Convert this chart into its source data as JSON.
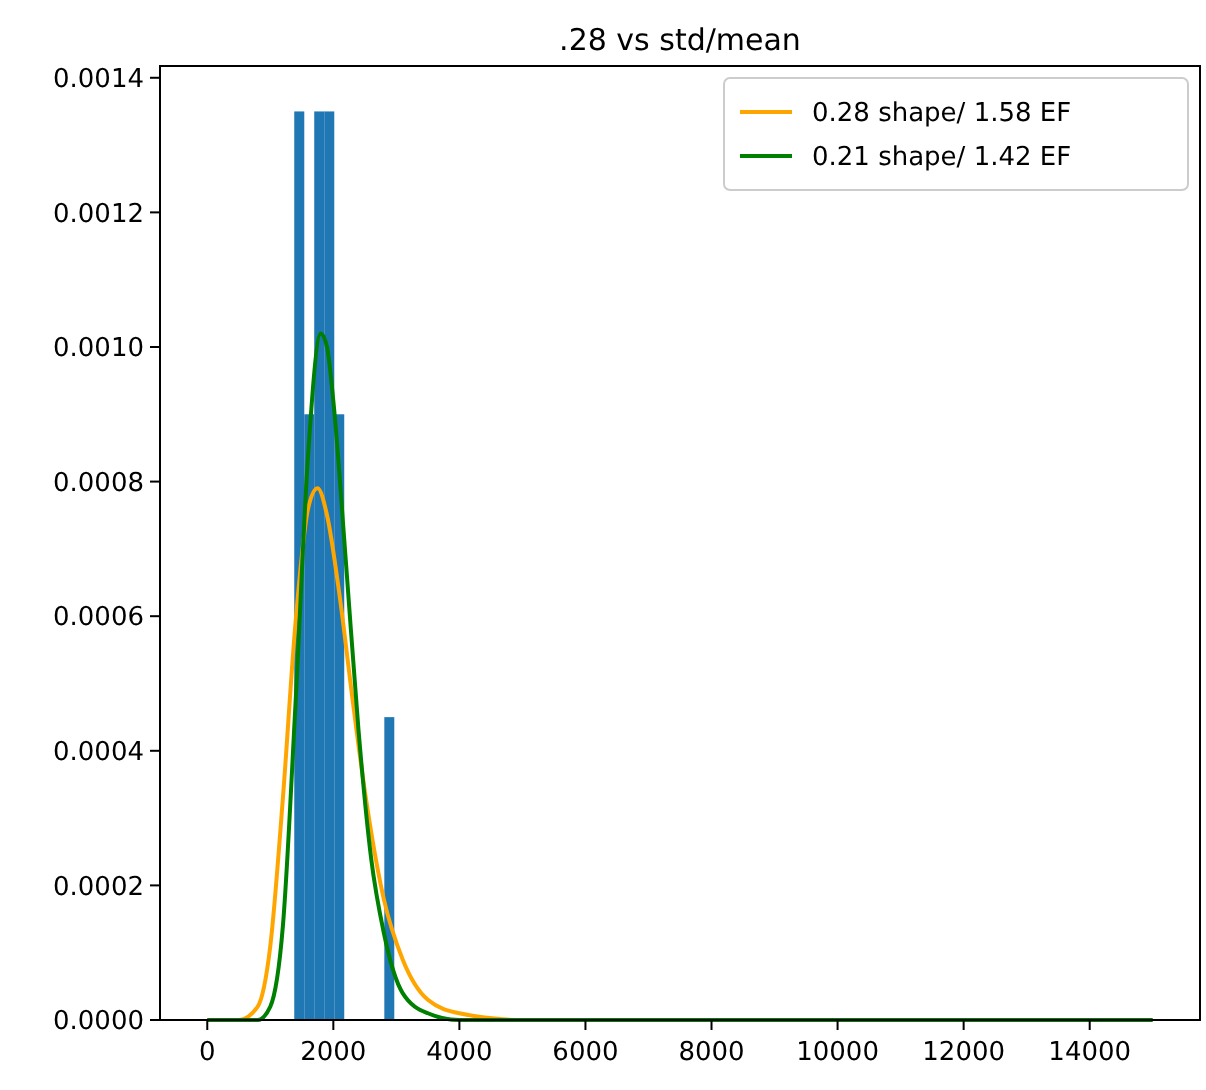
{
  "chart_data": {
    "type": "histogram",
    "title": ".28 vs std/mean",
    "bins": [
      1380,
      1539,
      1697,
      1856,
      2015,
      2173,
      2332,
      2491,
      2650,
      2809,
      2967
    ],
    "values": [
      0.00135,
      0.0009,
      0.00135,
      0.00135,
      0.0009,
      0,
      0,
      0,
      0,
      0.00045
    ],
    "color": "#1f77b4",
    "series": [
      {
        "name": "0.28 shape/ 1.58 EF",
        "type": "line",
        "color": "#ffa500",
        "x": [
          0,
          500,
          800,
          1000,
          1200,
          1400,
          1600,
          1750,
          1900,
          2100,
          2300,
          2500,
          2800,
          3100,
          3500,
          4000,
          5000,
          6000
        ],
        "values": [
          0,
          0,
          2e-05,
          0.00011,
          0.00033,
          0.00059,
          0.00076,
          0.00079,
          0.00075,
          0.00063,
          0.00048,
          0.00034,
          0.00018,
          9e-05,
          3e-05,
          1e-05,
          0,
          0
        ]
      },
      {
        "name": "0.21 shape/ 1.42 EF",
        "type": "line",
        "color": "#008000",
        "x": [
          0,
          500,
          800,
          1000,
          1200,
          1400,
          1600,
          1800,
          1900,
          2000,
          2200,
          2400,
          2600,
          2800,
          3100,
          3500,
          4000,
          5000,
          8000,
          15000
        ],
        "values": [
          0,
          0,
          0,
          2e-05,
          0.00014,
          0.00047,
          0.00084,
          0.00102,
          0.001,
          0.00092,
          0.00068,
          0.00043,
          0.00024,
          0.00013,
          4e-05,
          1e-05,
          0,
          0,
          0,
          0
        ]
      }
    ],
    "xlim": [
      -750,
      15750
    ],
    "xticks": [
      0,
      2000,
      4000,
      6000,
      8000,
      10000,
      12000,
      14000
    ],
    "ylim": [
      0,
      0.0014175
    ],
    "yticks": [
      {
        "value": 0,
        "label": "0.0000"
      },
      {
        "value": 0.0002,
        "label": "0.0002"
      },
      {
        "value": 0.0004,
        "label": "0.0004"
      },
      {
        "value": 0.0006,
        "label": "0.0006"
      },
      {
        "value": 0.0008,
        "label": "0.0008"
      },
      {
        "value": 0.001,
        "label": "0.0010"
      },
      {
        "value": 0.0012,
        "label": "0.0012"
      },
      {
        "value": 0.0014,
        "label": "0.0014"
      }
    ],
    "legend": "top right"
  }
}
